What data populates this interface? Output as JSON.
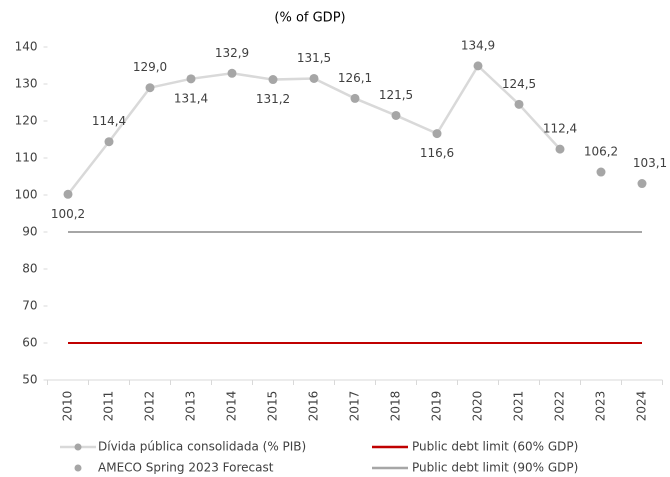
{
  "chart_data": {
    "type": "line",
    "title": "(% of GDP)",
    "categories": [
      "2010",
      "2011",
      "2012",
      "2013",
      "2014",
      "2015",
      "2016",
      "2017",
      "2018",
      "2019",
      "2020",
      "2021",
      "2022",
      "2023",
      "2024"
    ],
    "ylim": [
      50,
      140
    ],
    "yticks": [
      50,
      60,
      70,
      80,
      90,
      100,
      110,
      120,
      130,
      140
    ],
    "series": [
      {
        "name": "Dívida pública consolidada (% PIB)",
        "color": "#d9d9d9",
        "marker_color": "#a6a6a6",
        "line": true,
        "marker": true,
        "values": [
          100.2,
          114.4,
          129.0,
          131.4,
          132.9,
          131.2,
          131.5,
          126.1,
          121.5,
          116.6,
          134.9,
          124.5,
          112.4,
          null,
          null
        ],
        "value_labels": [
          "100,2",
          "114,4",
          "129,0",
          "131,4",
          "132,9",
          "131,2",
          "131,5",
          "126,1",
          "121,5",
          "116,6",
          "134,9",
          "124,5",
          "112,4",
          null,
          null
        ]
      },
      {
        "name": "AMECO Spring 2023 Forecast",
        "color": "#a6a6a6",
        "marker_color": "#a6a6a6",
        "line": false,
        "marker": true,
        "values": [
          null,
          null,
          null,
          null,
          null,
          null,
          null,
          null,
          null,
          null,
          null,
          null,
          null,
          106.2,
          103.1
        ],
        "value_labels": [
          null,
          null,
          null,
          null,
          null,
          null,
          null,
          null,
          null,
          null,
          null,
          null,
          null,
          "106,2",
          "103,1"
        ]
      },
      {
        "name": "Public debt limit (60% GDP)",
        "color": "#c00000",
        "line": true,
        "marker": false,
        "values": [
          60,
          60,
          60,
          60,
          60,
          60,
          60,
          60,
          60,
          60,
          60,
          60,
          60,
          60,
          60
        ]
      },
      {
        "name": "Public debt limit (90% GDP)",
        "color": "#a6a6a6",
        "line": true,
        "marker": false,
        "values": [
          90,
          90,
          90,
          90,
          90,
          90,
          90,
          90,
          90,
          90,
          90,
          90,
          90,
          90,
          90
        ]
      }
    ]
  }
}
